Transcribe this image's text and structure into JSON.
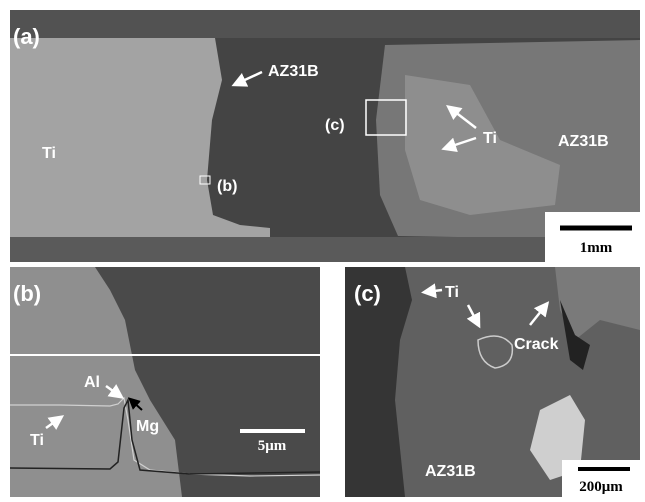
{
  "panels": [
    {
      "label": "(a)",
      "texts": [
        "AZ31B",
        "Ti",
        "(c)",
        "Ti",
        "AZ31B",
        "(b)"
      ],
      "scale_bar": "1mm"
    },
    {
      "label": "(b)",
      "texts": [
        "Al",
        "Mg",
        "Ti"
      ],
      "scale_bar": "5μm"
    },
    {
      "label": "(c)",
      "texts": [
        "Ti",
        "Crack",
        "AZ31B"
      ],
      "scale_bar": "200μm"
    }
  ]
}
